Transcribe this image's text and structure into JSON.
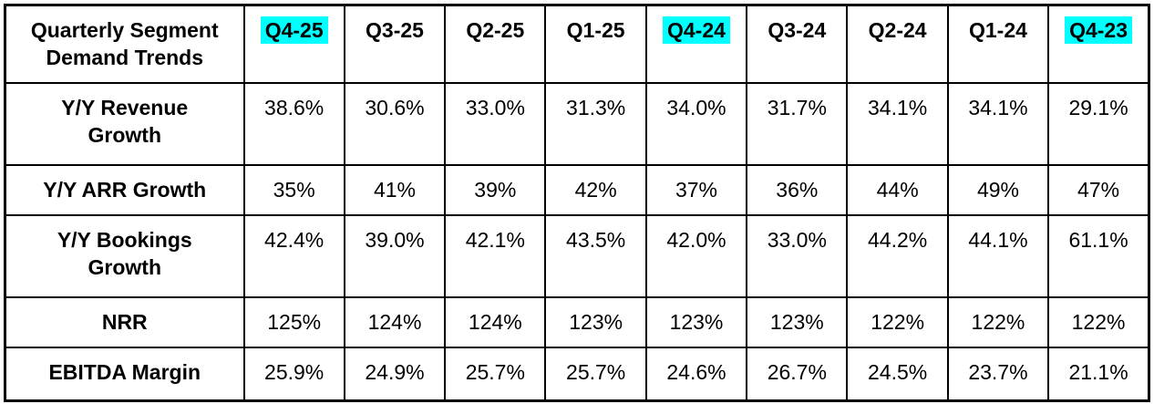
{
  "table": {
    "corner_label": "Quarterly Segment\nDemand Trends",
    "columns": [
      {
        "label": "Q4-25",
        "highlight": true
      },
      {
        "label": "Q3-25",
        "highlight": false
      },
      {
        "label": "Q2-25",
        "highlight": false
      },
      {
        "label": "Q1-25",
        "highlight": false
      },
      {
        "label": "Q4-24",
        "highlight": true
      },
      {
        "label": "Q3-24",
        "highlight": false
      },
      {
        "label": "Q2-24",
        "highlight": false
      },
      {
        "label": "Q1-24",
        "highlight": false
      },
      {
        "label": "Q4-23",
        "highlight": true
      }
    ],
    "rows": [
      {
        "label": "Y/Y Revenue\nGrowth",
        "values": [
          "38.6%",
          "30.6%",
          "33.0%",
          "31.3%",
          "34.0%",
          "31.7%",
          "34.1%",
          "34.1%",
          "29.1%"
        ]
      },
      {
        "label": "Y/Y ARR Growth",
        "values": [
          "35%",
          "41%",
          "39%",
          "42%",
          "37%",
          "36%",
          "44%",
          "49%",
          "47%"
        ]
      },
      {
        "label": "Y/Y Bookings\nGrowth",
        "values": [
          "42.4%",
          "39.0%",
          "42.1%",
          "43.5%",
          "42.0%",
          "33.0%",
          "44.2%",
          "44.1%",
          "61.1%"
        ]
      },
      {
        "label": "NRR",
        "values": [
          "125%",
          "124%",
          "124%",
          "123%",
          "123%",
          "123%",
          "122%",
          "122%",
          "122%"
        ]
      },
      {
        "label": "EBITDA Margin",
        "values": [
          "25.9%",
          "24.9%",
          "25.7%",
          "25.7%",
          "24.6%",
          "26.7%",
          "24.5%",
          "23.7%",
          "21.1%"
        ]
      }
    ]
  },
  "colors": {
    "highlight": "#00FFFF",
    "border": "#000000",
    "text": "#000000",
    "background": "#FFFFFF"
  },
  "chart_data": {
    "type": "table",
    "title": "Quarterly Segment Demand Trends",
    "categories": [
      "Q4-25",
      "Q3-25",
      "Q2-25",
      "Q1-25",
      "Q4-24",
      "Q3-24",
      "Q2-24",
      "Q1-24",
      "Q4-23"
    ],
    "highlighted_columns": [
      "Q4-25",
      "Q4-24",
      "Q4-23"
    ],
    "series": [
      {
        "name": "Y/Y Revenue Growth",
        "unit": "%",
        "values": [
          38.6,
          30.6,
          33.0,
          31.3,
          34.0,
          31.7,
          34.1,
          34.1,
          29.1
        ]
      },
      {
        "name": "Y/Y ARR Growth",
        "unit": "%",
        "values": [
          35,
          41,
          39,
          42,
          37,
          36,
          44,
          49,
          47
        ]
      },
      {
        "name": "Y/Y Bookings Growth",
        "unit": "%",
        "values": [
          42.4,
          39.0,
          42.1,
          43.5,
          42.0,
          33.0,
          44.2,
          44.1,
          61.1
        ]
      },
      {
        "name": "NRR",
        "unit": "%",
        "values": [
          125,
          124,
          124,
          123,
          123,
          123,
          122,
          122,
          122
        ]
      },
      {
        "name": "EBITDA Margin",
        "unit": "%",
        "values": [
          25.9,
          24.9,
          25.7,
          25.7,
          24.6,
          26.7,
          24.5,
          23.7,
          21.1
        ]
      }
    ]
  }
}
